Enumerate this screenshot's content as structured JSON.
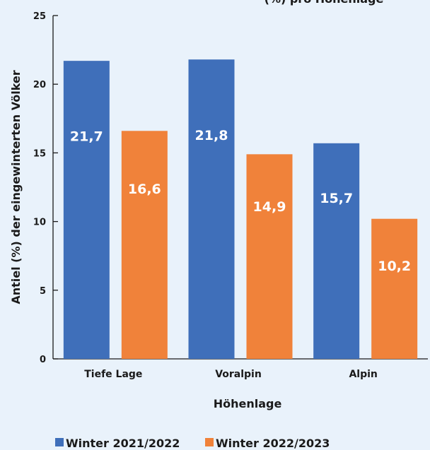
{
  "chart_data": {
    "type": "bar",
    "title_fragment": "(%) pro Höhenlage",
    "xlabel": "Höhenlage",
    "ylabel": "Antiel (%) der eingewinterten Völker",
    "categories": [
      "Tiefe Lage",
      "Voralpin",
      "Alpin"
    ],
    "ylim": [
      0,
      25
    ],
    "yticks": [
      0,
      5,
      10,
      15,
      20,
      25
    ],
    "grid": false,
    "legend_position": "bottom",
    "series": [
      {
        "name": "Winter 2021/2022",
        "color": "#3f6fba",
        "values": [
          21.7,
          21.8,
          15.7
        ],
        "labels": [
          "21,7",
          "21,8",
          "15,7"
        ]
      },
      {
        "name": "Winter 2022/2023",
        "color": "#f0823a",
        "values": [
          16.6,
          14.9,
          10.2
        ],
        "labels": [
          "16,6",
          "14,9",
          "10,2"
        ]
      }
    ]
  }
}
